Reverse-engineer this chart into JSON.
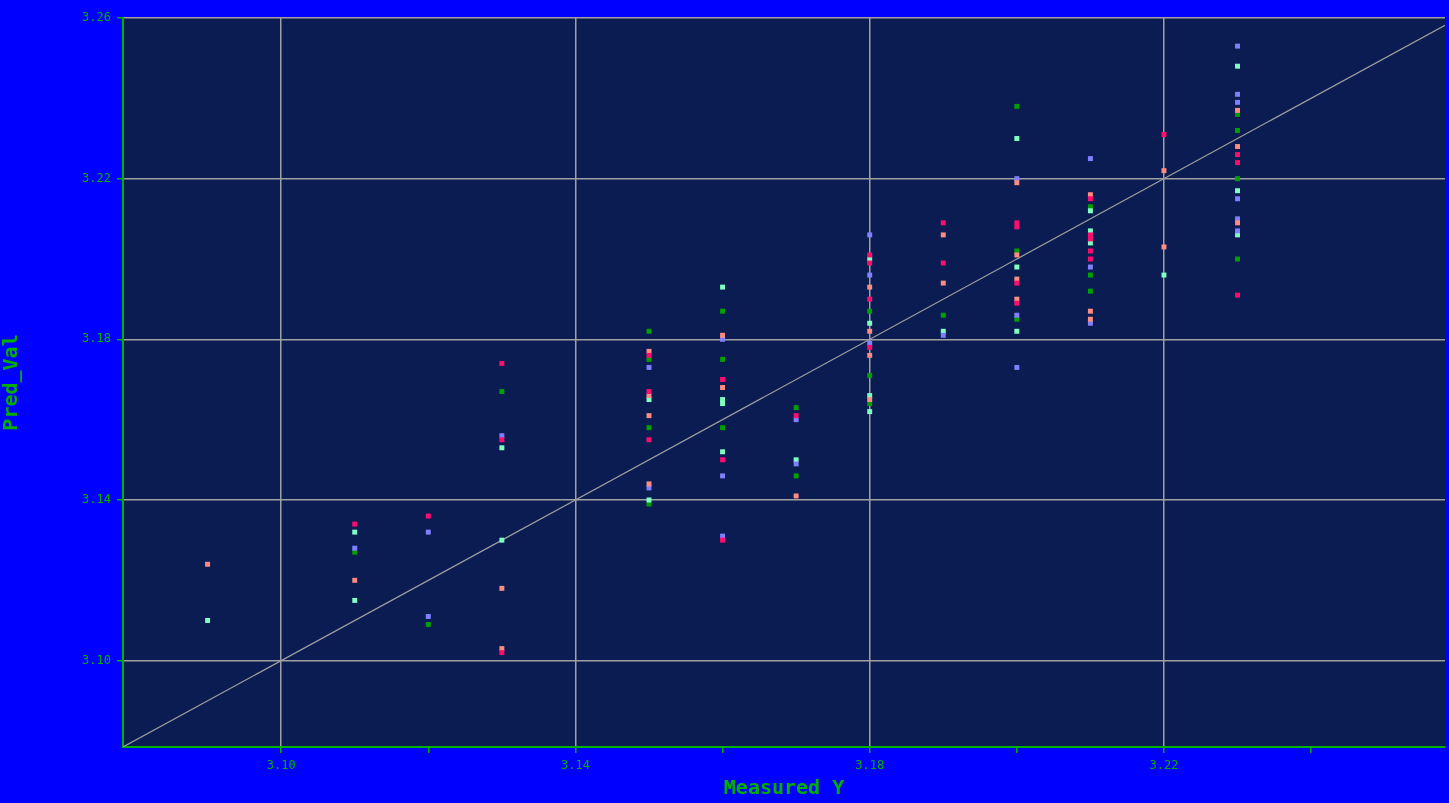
{
  "chart_data": {
    "type": "scatter",
    "xlabel": "Measured Y",
    "ylabel": "Pred_Val",
    "marker": "square",
    "grid": true,
    "legend": false,
    "xlim": [
      3.0785,
      3.2582
    ],
    "ylim": [
      3.0785,
      3.26
    ],
    "xticks": [
      {
        "value": 3.1,
        "label": "3.10"
      },
      {
        "value": 3.12,
        "label": null
      },
      {
        "value": 3.14,
        "label": "3.14"
      },
      {
        "value": 3.16,
        "label": null
      },
      {
        "value": 3.18,
        "label": "3.18"
      },
      {
        "value": 3.2,
        "label": null
      },
      {
        "value": 3.22,
        "label": "3.22"
      },
      {
        "value": 3.24,
        "label": null
      }
    ],
    "yticks": [
      {
        "value": 3.1,
        "label": "3.10"
      },
      {
        "value": 3.14,
        "label": "3.14"
      },
      {
        "value": 3.18,
        "label": "3.18"
      },
      {
        "value": 3.22,
        "label": "3.22"
      },
      {
        "value": 3.26,
        "label": "3.26"
      }
    ],
    "series": [
      {
        "color": "#ff0d6e",
        "x": [
          3.11,
          3.12,
          3.13,
          3.13,
          3.13,
          3.15,
          3.15,
          3.15,
          3.16,
          3.16,
          3.16,
          3.17,
          3.18,
          3.18,
          3.18,
          3.18,
          3.19,
          3.19,
          3.2,
          3.2,
          3.2,
          3.2,
          3.21,
          3.21,
          3.21,
          3.21,
          3.21,
          3.22,
          3.23,
          3.23,
          3.23
        ],
        "values": [
          3.134,
          3.136,
          3.174,
          3.155,
          3.102,
          3.176,
          3.167,
          3.155,
          3.17,
          3.15,
          3.13,
          3.161,
          3.201,
          3.199,
          3.19,
          3.178,
          3.209,
          3.199,
          3.209,
          3.208,
          3.194,
          3.189,
          3.215,
          3.206,
          3.205,
          3.202,
          3.2,
          3.231,
          3.226,
          3.224,
          3.191
        ]
      },
      {
        "color": "#ff8c80",
        "x": [
          3.09,
          3.11,
          3.13,
          3.13,
          3.15,
          3.15,
          3.15,
          3.15,
          3.16,
          3.16,
          3.17,
          3.18,
          3.18,
          3.18,
          3.18,
          3.19,
          3.19,
          3.2,
          3.2,
          3.2,
          3.2,
          3.21,
          3.21,
          3.21,
          3.22,
          3.22,
          3.23,
          3.23,
          3.23
        ],
        "values": [
          3.124,
          3.12,
          3.118,
          3.103,
          3.177,
          3.166,
          3.161,
          3.144,
          3.181,
          3.168,
          3.141,
          3.193,
          3.182,
          3.176,
          3.165,
          3.206,
          3.194,
          3.219,
          3.201,
          3.195,
          3.19,
          3.216,
          3.187,
          3.185,
          3.222,
          3.203,
          3.237,
          3.228,
          3.209
        ]
      },
      {
        "color": "#8080ff",
        "x": [
          3.11,
          3.12,
          3.12,
          3.13,
          3.15,
          3.15,
          3.16,
          3.16,
          3.16,
          3.17,
          3.17,
          3.18,
          3.18,
          3.18,
          3.19,
          3.2,
          3.2,
          3.2,
          3.21,
          3.21,
          3.21,
          3.23,
          3.23,
          3.23,
          3.23,
          3.23,
          3.23
        ],
        "values": [
          3.128,
          3.132,
          3.111,
          3.156,
          3.173,
          3.143,
          3.18,
          3.146,
          3.131,
          3.16,
          3.149,
          3.206,
          3.196,
          3.179,
          3.181,
          3.22,
          3.186,
          3.173,
          3.225,
          3.198,
          3.184,
          3.253,
          3.241,
          3.239,
          3.215,
          3.21,
          3.207
        ]
      },
      {
        "color": "#80ffc0",
        "x": [
          3.09,
          3.11,
          3.11,
          3.13,
          3.13,
          3.15,
          3.15,
          3.16,
          3.16,
          3.16,
          3.16,
          3.17,
          3.18,
          3.18,
          3.18,
          3.18,
          3.19,
          3.2,
          3.2,
          3.2,
          3.21,
          3.21,
          3.21,
          3.22,
          3.23,
          3.23,
          3.23
        ],
        "values": [
          3.11,
          3.132,
          3.115,
          3.153,
          3.13,
          3.165,
          3.14,
          3.193,
          3.165,
          3.164,
          3.152,
          3.15,
          3.2,
          3.184,
          3.166,
          3.162,
          3.182,
          3.23,
          3.198,
          3.182,
          3.212,
          3.207,
          3.204,
          3.196,
          3.248,
          3.217,
          3.206
        ]
      },
      {
        "color": "#00a000",
        "x": [
          3.11,
          3.12,
          3.13,
          3.15,
          3.15,
          3.15,
          3.15,
          3.16,
          3.16,
          3.16,
          3.17,
          3.17,
          3.18,
          3.18,
          3.18,
          3.19,
          3.2,
          3.2,
          3.2,
          3.21,
          3.21,
          3.21,
          3.23,
          3.23,
          3.23,
          3.23
        ],
        "values": [
          3.127,
          3.109,
          3.167,
          3.182,
          3.175,
          3.158,
          3.139,
          3.187,
          3.175,
          3.158,
          3.163,
          3.146,
          3.187,
          3.171,
          3.164,
          3.186,
          3.238,
          3.202,
          3.185,
          3.213,
          3.196,
          3.192,
          3.236,
          3.232,
          3.22,
          3.2
        ]
      },
      {
        "type": "line",
        "color": "#a0a0a0",
        "marker": "none",
        "x": [
          3.0785,
          3.2582
        ],
        "values": [
          3.0785,
          3.2582
        ]
      }
    ]
  }
}
